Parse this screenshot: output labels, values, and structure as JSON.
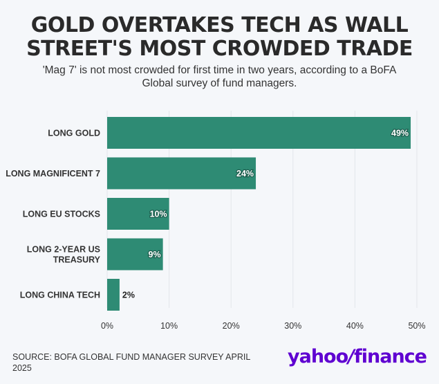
{
  "header": {
    "title_line1": "GOLD OVERTAKES TECH AS WALL",
    "title_line2": "STREET'S MOST CROWDED TRADE",
    "subtitle": "'Mag 7' is not most crowded for first time in two years, according to a BoFA Global survey of fund managers."
  },
  "chart_data": {
    "type": "bar",
    "orientation": "horizontal",
    "categories": [
      [
        "LONG GOLD"
      ],
      [
        "LONG MAGNIFICENT 7"
      ],
      [
        "LONG EU STOCKS"
      ],
      [
        "LONG 2-YEAR US",
        "TREASURY"
      ],
      [
        "LONG CHINA TECH"
      ]
    ],
    "values": [
      49,
      24,
      10,
      9,
      2
    ],
    "value_labels": [
      "49%",
      "24%",
      "10%",
      "9%",
      "2%"
    ],
    "xlim": [
      0,
      50
    ],
    "xticks": [
      0,
      10,
      20,
      30,
      40,
      50
    ],
    "xtick_labels": [
      "0%",
      "10%",
      "20%",
      "30%",
      "40%",
      "50%"
    ],
    "grid": "vertical",
    "bar_color": "#2e8b74"
  },
  "footer": {
    "source": "SOURCE: BOFA GLOBAL FUND MANAGER SURVEY APRIL 2025",
    "logo_part1": "yahoo",
    "logo_slash": "/",
    "logo_part2": "finance"
  }
}
